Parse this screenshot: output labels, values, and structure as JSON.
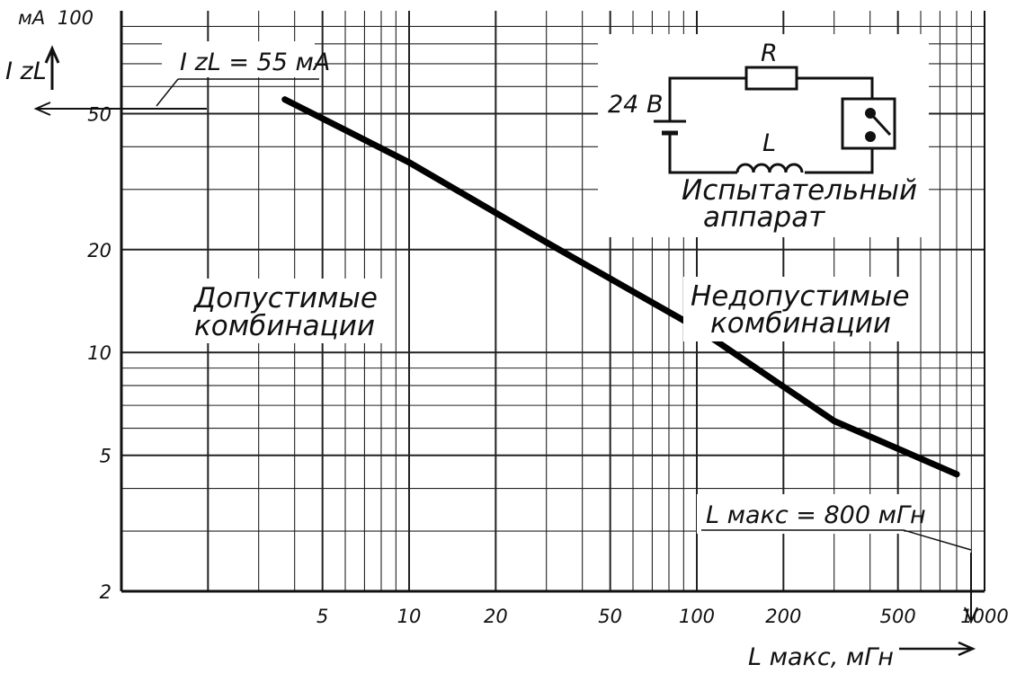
{
  "chart_data": {
    "type": "line",
    "xscale": "log",
    "yscale": "log",
    "xlim": [
      1,
      1000
    ],
    "ylim": [
      2,
      100
    ],
    "grid": true,
    "xlabel": "L макс, мГн",
    "ylabel": "I zL",
    "y_unit": "мА",
    "x_ticks": [
      5,
      10,
      20,
      50,
      100,
      200,
      500,
      1000
    ],
    "x_tick_labels": [
      "5",
      "10",
      "20",
      "50",
      "100",
      "200",
      "500",
      "1000"
    ],
    "y_ticks": [
      2,
      5,
      10,
      20,
      50,
      100
    ],
    "y_tick_labels": [
      "2",
      "5",
      "10",
      "20",
      "50",
      "100"
    ],
    "series": [
      {
        "x": [
          3.7,
          10,
          30,
          100,
          300,
          800
        ],
        "y": [
          55,
          36,
          21,
          11.8,
          6.3,
          4.4
        ]
      }
    ],
    "annotations": {
      "current_max": "I zL = 55 мА",
      "l_max": "L макс = 800 мГн",
      "allowed": [
        "Допустимые",
        "комбинации"
      ],
      "forbidden": [
        "Недопустимые",
        "комбинации"
      ],
      "device": [
        "Испытательный",
        "аппарат"
      ],
      "voltage": "24 В",
      "resistor": "R",
      "inductor": "L"
    }
  }
}
